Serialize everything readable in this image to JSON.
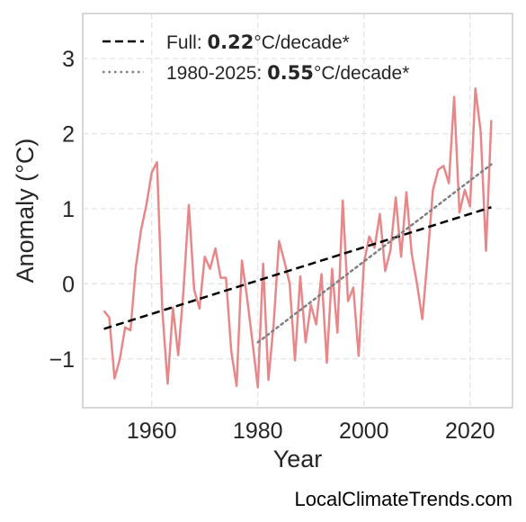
{
  "chart_data": {
    "type": "line",
    "xlabel": "Year",
    "ylabel": "Anomaly (°C)",
    "xlim": [
      1947,
      2028
    ],
    "ylim": [
      -1.65,
      3.6
    ],
    "xticks": [
      1960,
      1980,
      2000,
      2020
    ],
    "yticks": [
      -1,
      0,
      1,
      2,
      3
    ],
    "ytick_labels": [
      "−1",
      "0",
      "1",
      "2",
      "3"
    ],
    "grid": true,
    "legend_position": "top-left",
    "series": [
      {
        "style": "solid",
        "color": "#e8878a",
        "x": [
          1951,
          1952,
          1953,
          1954,
          1955,
          1956,
          1957,
          1958,
          1959,
          1960,
          1961,
          1962,
          1963,
          1964,
          1965,
          1966,
          1967,
          1968,
          1969,
          1970,
          1971,
          1972,
          1973,
          1974,
          1975,
          1976,
          1977,
          1978,
          1979,
          1980,
          1981,
          1982,
          1983,
          1984,
          1985,
          1986,
          1987,
          1988,
          1989,
          1990,
          1991,
          1992,
          1993,
          1994,
          1995,
          1996,
          1997,
          1998,
          1999,
          2000,
          2001,
          2002,
          2003,
          2004,
          2005,
          2006,
          2007,
          2008,
          2009,
          2010,
          2011,
          2012,
          2013,
          2014,
          2015,
          2016,
          2017,
          2018,
          2019,
          2020,
          2021,
          2022,
          2023,
          2024
        ],
        "values": [
          -0.36,
          -0.45,
          -1.26,
          -1.0,
          -0.58,
          -0.62,
          0.22,
          0.72,
          1.05,
          1.48,
          1.62,
          -0.35,
          -1.33,
          -0.32,
          -0.95,
          -0.08,
          1.05,
          -0.08,
          -0.33,
          0.36,
          0.2,
          0.47,
          0.08,
          0.08,
          -0.9,
          -1.36,
          0.31,
          -0.2,
          -0.78,
          -1.38,
          0.27,
          -1.28,
          -0.52,
          0.57,
          0.3,
          0.0,
          -1.02,
          0.1,
          -0.78,
          -0.28,
          -0.54,
          0.13,
          -1.05,
          0.2,
          -0.65,
          1.11,
          -0.23,
          -0.05,
          -0.96,
          0.28,
          0.63,
          0.48,
          0.93,
          0.17,
          0.45,
          1.15,
          0.36,
          1.22,
          0.4,
          0.0,
          -0.47,
          0.35,
          1.25,
          1.52,
          1.57,
          1.34,
          2.49,
          0.95,
          1.25,
          1.03,
          2.6,
          2.03,
          0.44,
          2.18
        ]
      },
      {
        "name": "Full",
        "style": "dashed",
        "color": "#000000",
        "x": [
          1951,
          2024
        ],
        "values": [
          -0.6,
          1.02
        ]
      },
      {
        "name": "1980-2025",
        "style": "dotted",
        "color": "#808080",
        "x": [
          1980,
          2024
        ],
        "values": [
          -0.78,
          1.59
        ]
      }
    ],
    "legend": [
      {
        "prefix": "Full: ",
        "value": "0.22",
        "suffix": "°C/decade*"
      },
      {
        "prefix": "1980-2025: ",
        "value": "0.55",
        "suffix": "°C/decade*"
      }
    ]
  },
  "watermark": "LocalClimateTrends.com"
}
